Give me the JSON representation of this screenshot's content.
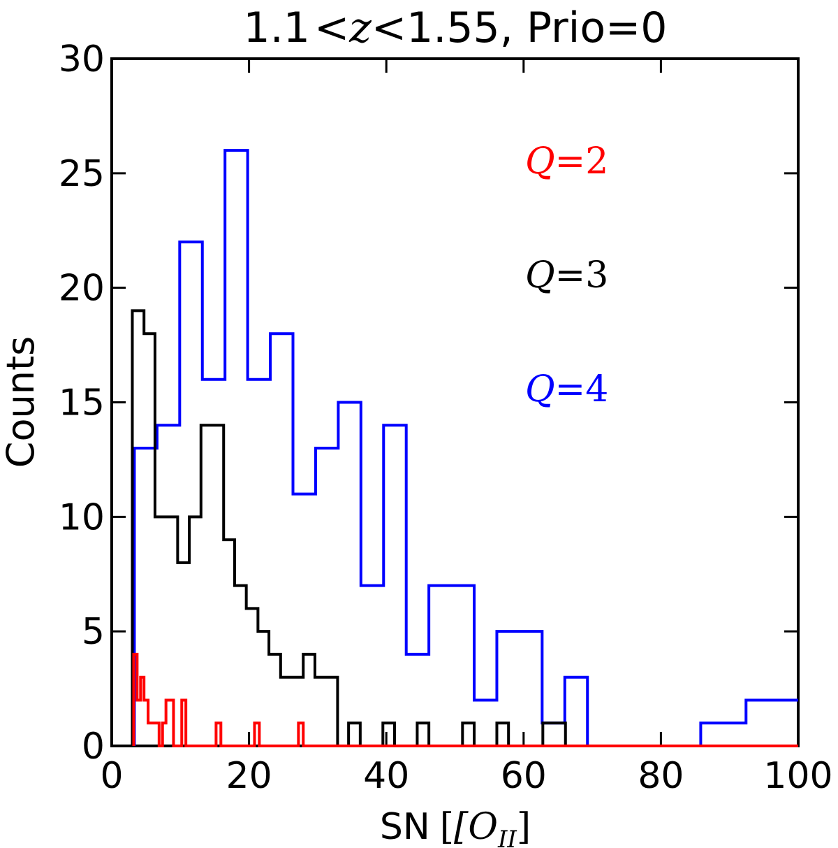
{
  "chart_data": {
    "type": "histogram-step",
    "title": "1.1 <z< 1.55, Prio=0",
    "title_parts": {
      "lo": "1.1",
      "var": "z",
      "hi": "1.55",
      "suffix": ", Prio=0"
    },
    "xlabel": "SN",
    "xlabel_math": "[O",
    "xlabel_sub": "II",
    "xlabel_close": "]",
    "ylabel": "Counts",
    "xlim": [
      0,
      100
    ],
    "ylim": [
      0,
      30
    ],
    "xticks": [
      0,
      20,
      40,
      60,
      80,
      100
    ],
    "yticks": [
      0,
      5,
      10,
      15,
      20,
      25,
      30
    ],
    "series": [
      {
        "name": "Q=4",
        "label_var": "Q",
        "label_val": "=4",
        "color": "#0000ff",
        "edges": [
          3.3,
          6.6,
          9.9,
          13.2,
          16.5,
          19.8,
          23.1,
          26.4,
          29.7,
          33.0,
          36.3,
          39.6,
          42.9,
          46.2,
          49.5,
          52.8,
          56.1,
          59.4,
          62.7,
          66.0,
          69.3,
          72.6,
          75.9,
          79.2,
          82.5,
          85.8,
          89.1,
          92.4,
          95.7,
          99.0,
          100.0
        ],
        "counts": [
          13,
          14,
          22,
          16,
          26,
          16,
          18,
          11,
          13,
          15,
          7,
          14,
          4,
          7,
          7,
          2,
          5,
          5,
          1,
          3,
          0,
          0,
          0,
          0,
          0,
          1,
          1,
          2,
          2,
          2
        ]
      },
      {
        "name": "Q=3",
        "label_var": "Q",
        "label_val": "=3",
        "color": "#000000",
        "edges": [
          3.0,
          4.7,
          6.3,
          8.0,
          9.6,
          11.3,
          13.0,
          14.6,
          16.3,
          17.9,
          19.6,
          21.3,
          22.9,
          24.6,
          26.2,
          27.9,
          29.6,
          31.2,
          32.9,
          34.5,
          36.2,
          37.9,
          39.5,
          41.2,
          42.8,
          44.5,
          46.2,
          47.8,
          49.5,
          51.1,
          52.8,
          54.5,
          56.1,
          57.8,
          59.4,
          61.1,
          62.8,
          64.4,
          66.1,
          100.0
        ],
        "counts": [
          19,
          18,
          10,
          10,
          8,
          10,
          14,
          14,
          9,
          7,
          6,
          5,
          4,
          3,
          3,
          4,
          3,
          3,
          0,
          1,
          0,
          0,
          1,
          0,
          0,
          1,
          0,
          0,
          0,
          1,
          0,
          0,
          1,
          0,
          0,
          0,
          1,
          1,
          0
        ]
      },
      {
        "name": "Q=2",
        "label_var": "Q",
        "label_val": "=2",
        "color": "#ff0000",
        "edges": [
          3.2,
          3.7,
          4.2,
          4.7,
          5.3,
          5.9,
          6.9,
          7.4,
          7.9,
          9.0,
          9.7,
          10.2,
          10.8,
          15.2,
          15.9,
          20.8,
          21.5,
          27.2,
          27.9,
          100.0
        ],
        "counts": [
          4,
          2,
          3,
          2,
          1,
          1,
          0,
          1,
          2,
          0,
          0,
          2,
          0,
          1,
          0,
          1,
          0,
          1,
          0
        ]
      }
    ]
  }
}
